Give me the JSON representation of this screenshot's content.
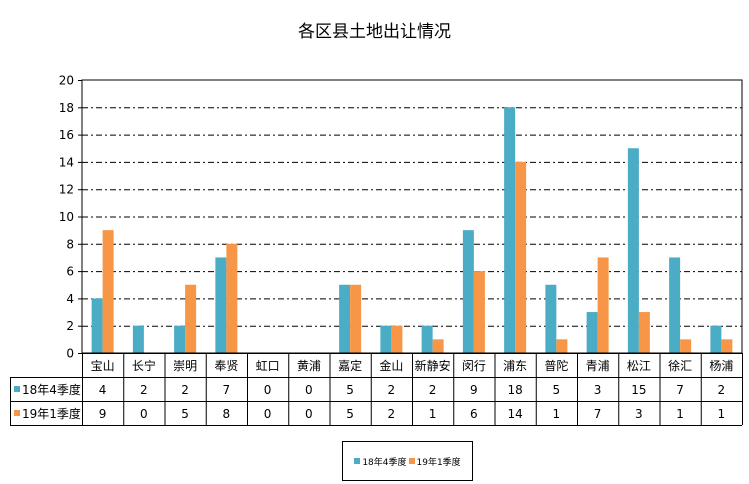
{
  "chart_data": {
    "type": "bar",
    "title": "各区县土地出让情况",
    "categories": [
      "宝山",
      "长宁",
      "崇明",
      "奉贤",
      "虹口",
      "黄浦",
      "嘉定",
      "金山",
      "新静安",
      "闵行",
      "浦东",
      "普陀",
      "青浦",
      "松江",
      "徐汇",
      "杨浦"
    ],
    "series": [
      {
        "name": "18年4季度",
        "color": "#4BACC6",
        "values": [
          4,
          2,
          2,
          7,
          0,
          0,
          5,
          2,
          2,
          9,
          18,
          5,
          3,
          15,
          7,
          2
        ]
      },
      {
        "name": "19年1季度",
        "color": "#F79646",
        "values": [
          9,
          0,
          5,
          8,
          0,
          0,
          5,
          2,
          1,
          6,
          14,
          1,
          7,
          3,
          1,
          1
        ]
      }
    ],
    "ylim": [
      0,
      20
    ],
    "yticks": [
      0,
      2,
      4,
      6,
      8,
      10,
      12,
      14,
      16,
      18,
      20
    ],
    "grid": "dash-dot horizontal",
    "data_table": true,
    "legend_position": "bottom"
  }
}
